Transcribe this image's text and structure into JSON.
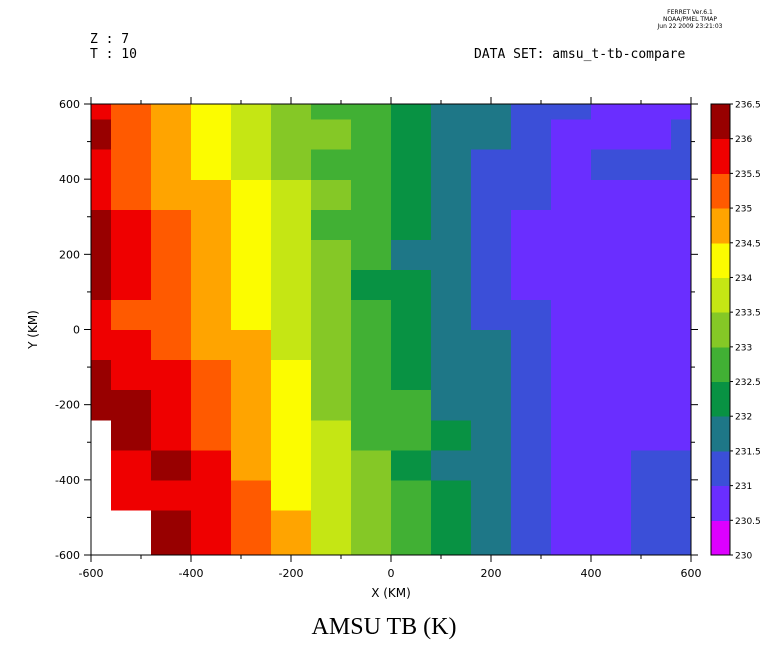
{
  "header": {
    "z_label": "Z : 7",
    "t_label": "T : 10",
    "dataset_label": "DATA SET: amsu_t-tb-compare",
    "stamp_line1": "FERRET  Ver.6.1",
    "stamp_line2": "NOAA/PMEL TMAP",
    "stamp_line3": "Jun 22 2009 23:21:03"
  },
  "chart_data": {
    "type": "heatmap",
    "title": "AMSU TB (K)",
    "xlabel": "X (KM)",
    "ylabel": "Y (KM)",
    "xlim": [
      -600,
      600
    ],
    "ylim": [
      -600,
      600
    ],
    "x_ticks": [
      -600,
      -400,
      -200,
      0,
      200,
      400,
      600
    ],
    "y_ticks": [
      -600,
      -400,
      -200,
      0,
      200,
      400,
      600
    ],
    "colorbar": {
      "levels": [
        230,
        230.5,
        231,
        231.5,
        232,
        232.5,
        233,
        233.5,
        234,
        234.5,
        235,
        235.5,
        236,
        236.5
      ],
      "level_labels": [
        "230",
        "230.5",
        "231",
        "231.5",
        "232",
        "232.5",
        "233",
        "233.5",
        "234",
        "234.5",
        "235",
        "235.5",
        "236",
        "236.5"
      ],
      "colors": [
        "#dd00ff",
        "#6a2eff",
        "#3b4fd8",
        "#1e7787",
        "#089243",
        "#41b034",
        "#85c826",
        "#c5e614",
        "#fcfc00",
        "#ffa400",
        "#ff5a00",
        "#ef0000",
        "#980000"
      ]
    },
    "x": [
      -600,
      -520,
      -440,
      -360,
      -280,
      -200,
      -120,
      -40,
      40,
      120,
      200,
      280,
      360,
      440,
      520,
      600
    ],
    "y": [
      -600,
      -520,
      -440,
      -360,
      -280,
      -200,
      -120,
      -40,
      40,
      120,
      200,
      280,
      360,
      440,
      520,
      600
    ],
    "z": [
      [
        null,
        null,
        236.4,
        235.6,
        235.0,
        234.6,
        233.9,
        233.3,
        232.7,
        232.1,
        231.7,
        231.2,
        230.9,
        230.9,
        231.0,
        231.0
      ],
      [
        null,
        null,
        236.3,
        235.7,
        235.1,
        234.5,
        233.8,
        233.2,
        232.6,
        232.2,
        231.6,
        231.2,
        230.9,
        230.9,
        231.0,
        231.0
      ],
      [
        null,
        235.8,
        235.9,
        235.6,
        235.0,
        234.4,
        233.7,
        233.1,
        232.5,
        232.0,
        231.6,
        231.3,
        230.9,
        230.8,
        231.0,
        231.0
      ],
      [
        null,
        235.9,
        236.0,
        235.5,
        234.9,
        234.3,
        233.6,
        233.0,
        232.4,
        231.9,
        231.7,
        231.2,
        230.9,
        230.9,
        231.0,
        231.0
      ],
      [
        null,
        236.1,
        235.7,
        235.3,
        234.8,
        234.2,
        233.5,
        232.9,
        232.7,
        232.0,
        231.7,
        231.2,
        230.9,
        230.8,
        230.9,
        230.9
      ],
      [
        236.0,
        236.0,
        235.6,
        235.3,
        234.7,
        234.1,
        233.4,
        232.8,
        232.5,
        231.9,
        231.6,
        231.1,
        230.9,
        230.9,
        230.7,
        230.8
      ],
      [
        236.1,
        235.9,
        235.5,
        235.1,
        234.6,
        234.0,
        233.4,
        232.7,
        232.3,
        231.8,
        231.6,
        231.1,
        230.8,
        230.7,
        230.6,
        230.7
      ],
      [
        235.8,
        235.5,
        235.3,
        234.9,
        234.5,
        233.9,
        233.3,
        232.6,
        232.2,
        231.8,
        231.5,
        231.0,
        230.7,
        230.6,
        230.6,
        230.6
      ],
      [
        235.6,
        235.4,
        235.1,
        234.8,
        234.4,
        233.8,
        233.2,
        232.5,
        232.1,
        231.7,
        231.4,
        231.0,
        230.7,
        230.7,
        230.8,
        230.9
      ],
      [
        236.1,
        235.7,
        235.0,
        234.8,
        234.3,
        233.6,
        233.1,
        232.4,
        232.0,
        231.6,
        231.3,
        230.9,
        230.7,
        230.8,
        230.9,
        230.9
      ],
      [
        236.2,
        235.8,
        235.1,
        234.7,
        234.2,
        233.5,
        233.0,
        232.6,
        231.9,
        231.7,
        231.2,
        230.9,
        230.7,
        230.6,
        230.8,
        230.9
      ],
      [
        236.1,
        235.7,
        235.0,
        234.6,
        234.1,
        233.6,
        232.9,
        232.6,
        232.0,
        231.8,
        231.2,
        230.9,
        230.8,
        230.8,
        230.9,
        230.9
      ],
      [
        235.7,
        235.4,
        234.9,
        234.5,
        234.0,
        233.5,
        233.0,
        232.5,
        232.3,
        231.8,
        231.3,
        231.0,
        230.9,
        230.9,
        230.9,
        230.9
      ],
      [
        235.8,
        235.3,
        234.8,
        234.4,
        233.9,
        233.4,
        232.9,
        232.6,
        232.1,
        231.7,
        231.4,
        231.0,
        230.9,
        231.0,
        231.0,
        231.1
      ],
      [
        236.1,
        235.2,
        234.7,
        234.3,
        233.8,
        233.3,
        233.0,
        232.5,
        232.2,
        231.7,
        231.5,
        231.1,
        230.9,
        230.9,
        230.9,
        231.0
      ],
      [
        235.6,
        235.0,
        234.6,
        234.2,
        233.8,
        233.2,
        232.9,
        232.6,
        232.3,
        231.7,
        231.5,
        231.2,
        231.0,
        230.8,
        230.7,
        230.8
      ]
    ]
  }
}
